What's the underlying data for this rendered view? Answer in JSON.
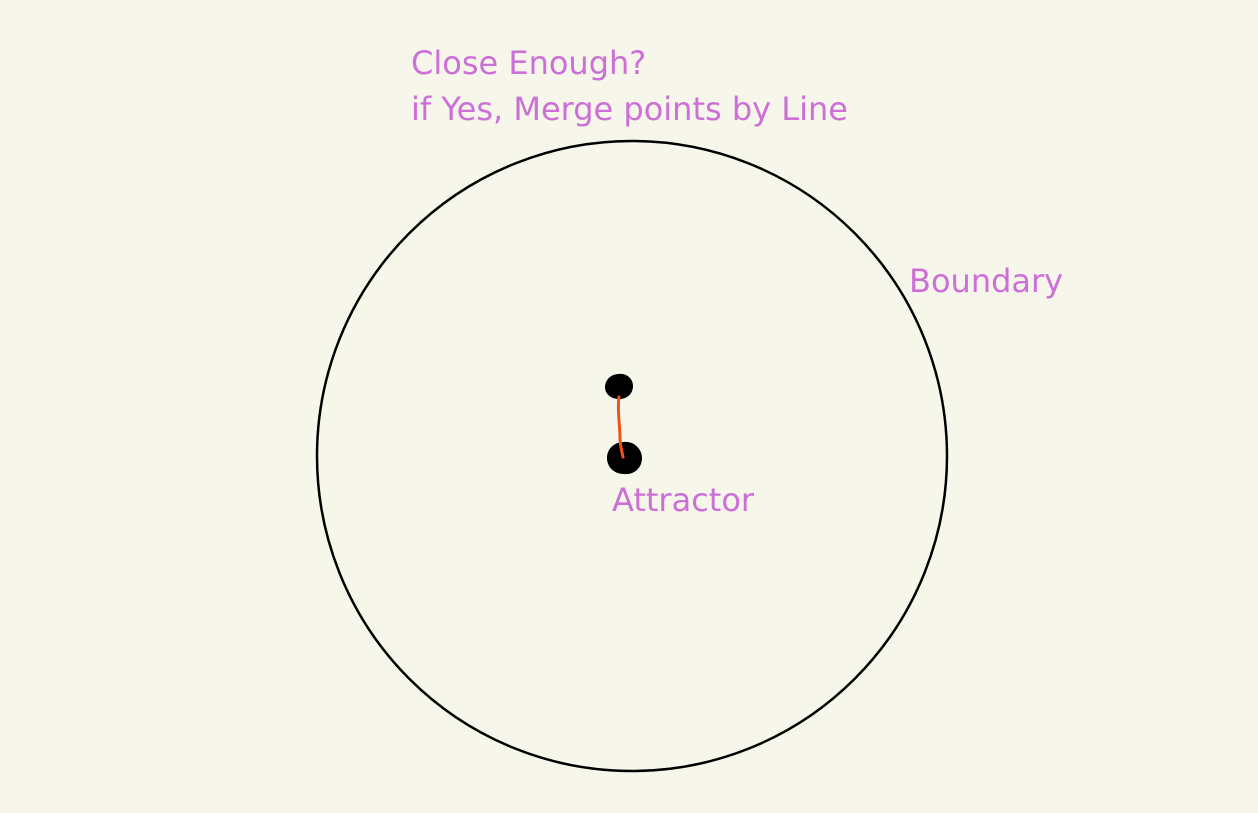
{
  "annotation": {
    "line1": "Close Enough?",
    "line2": "if Yes,  Merge points by Line"
  },
  "boundary_label": "Boundary",
  "attractor_label": "Attractor",
  "colors": {
    "background": "#f7f6ea",
    "label_text": "#cc6fd6",
    "boundary_stroke": "#000000",
    "point_fill": "#000000",
    "merge_line": "#f0521c"
  }
}
